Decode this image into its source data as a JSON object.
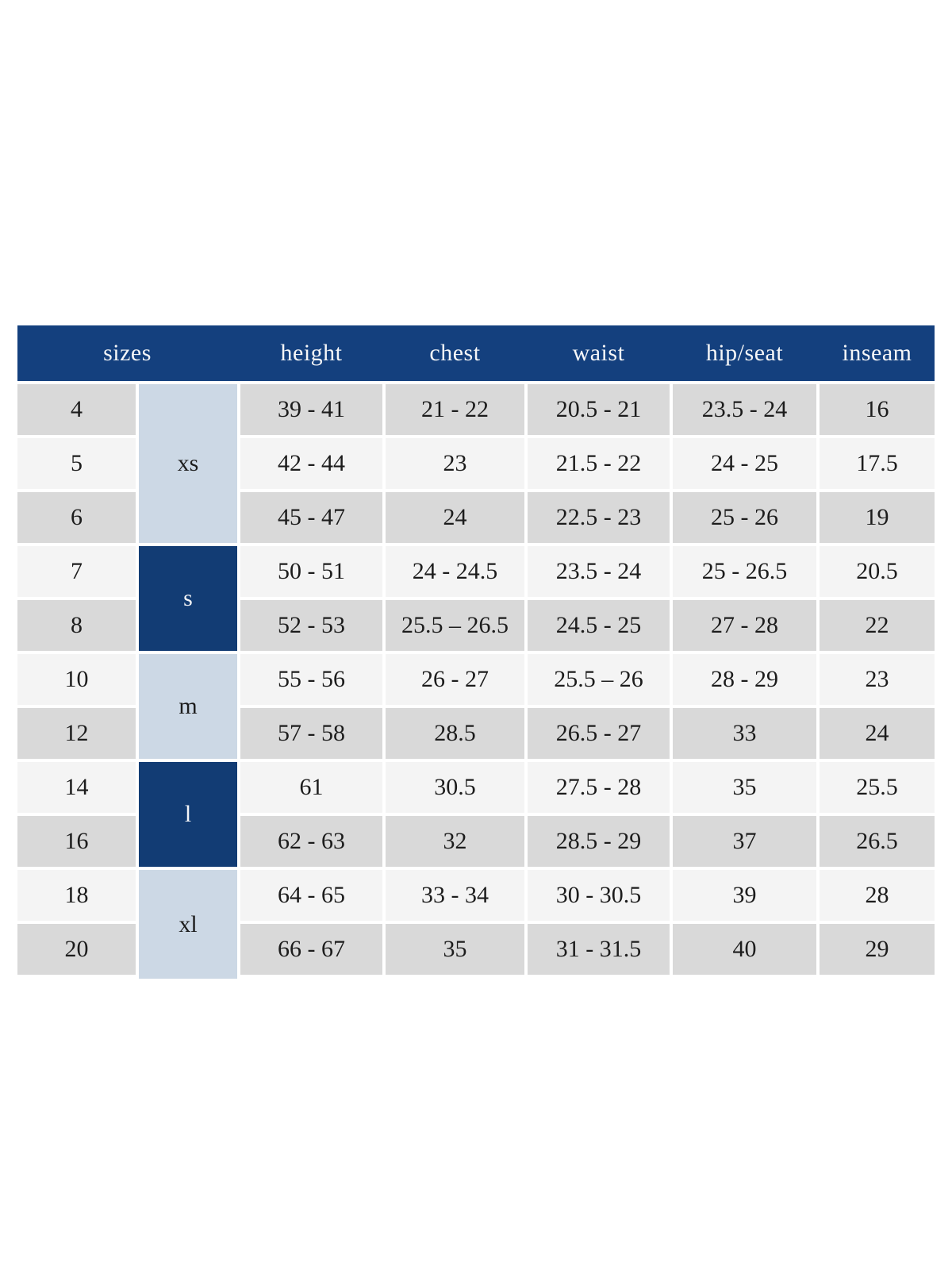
{
  "colors": {
    "header_bg": "#14407E",
    "header_text": "#F5F6F8",
    "group_dark_bg": "#123C74",
    "group_light_bg": "#CCD8E5",
    "row_gray_bg": "#D9D9D9",
    "row_light_bg": "#F4F4F4",
    "gap_color": "#FFFFFF",
    "body_text": "#1C1C1C"
  },
  "table": {
    "headers": [
      {
        "label": "sizes",
        "span": 2
      },
      {
        "label": "height",
        "span": 1
      },
      {
        "label": "chest",
        "span": 1
      },
      {
        "label": "waist",
        "span": 1
      },
      {
        "label": "hip/seat",
        "span": 1
      },
      {
        "label": "inseam",
        "span": 1
      }
    ],
    "size_groups": [
      {
        "label": "xs",
        "rows": 3,
        "tone": "light"
      },
      {
        "label": "s",
        "rows": 2,
        "tone": "dark"
      },
      {
        "label": "m",
        "rows": 2,
        "tone": "light"
      },
      {
        "label": "l",
        "rows": 2,
        "tone": "dark"
      },
      {
        "label": "xl",
        "rows": 2,
        "tone": "light",
        "extend_bottom": true
      }
    ],
    "rows": [
      {
        "size": "4",
        "height": "39 - 41",
        "chest": "21 - 22",
        "waist": "20.5 - 21",
        "hip_seat": "23.5 - 24",
        "inseam": "16"
      },
      {
        "size": "5",
        "height": "42 - 44",
        "chest": "23",
        "waist": "21.5 - 22",
        "hip_seat": "24 - 25",
        "inseam": "17.5"
      },
      {
        "size": "6",
        "height": "45 - 47",
        "chest": "24",
        "waist": "22.5 - 23",
        "hip_seat": "25 - 26",
        "inseam": "19"
      },
      {
        "size": "7",
        "height": "50 - 51",
        "chest": "24 - 24.5",
        "waist": "23.5 - 24",
        "hip_seat": "25 - 26.5",
        "inseam": "20.5"
      },
      {
        "size": "8",
        "height": "52 - 53",
        "chest": "25.5 – 26.5",
        "waist": "24.5 - 25",
        "hip_seat": "27 - 28",
        "inseam": "22"
      },
      {
        "size": "10",
        "height": "55 - 56",
        "chest": "26 - 27",
        "waist": "25.5 – 26",
        "hip_seat": "28 - 29",
        "inseam": "23"
      },
      {
        "size": "12",
        "height": "57 - 58",
        "chest": "28.5",
        "waist": "26.5 - 27",
        "hip_seat": "33",
        "inseam": "24"
      },
      {
        "size": "14",
        "height": "61",
        "chest": "30.5",
        "waist": "27.5 - 28",
        "hip_seat": "35",
        "inseam": "25.5"
      },
      {
        "size": "16",
        "height": "62 - 63",
        "chest": "32",
        "waist": "28.5 - 29",
        "hip_seat": "37",
        "inseam": "26.5"
      },
      {
        "size": "18",
        "height": "64 - 65",
        "chest": "33 - 34",
        "waist": "30 - 30.5",
        "hip_seat": "39",
        "inseam": "28"
      },
      {
        "size": "20",
        "height": "66 - 67",
        "chest": "35",
        "waist": "31 - 31.5",
        "hip_seat": "40",
        "inseam": "29"
      }
    ]
  }
}
